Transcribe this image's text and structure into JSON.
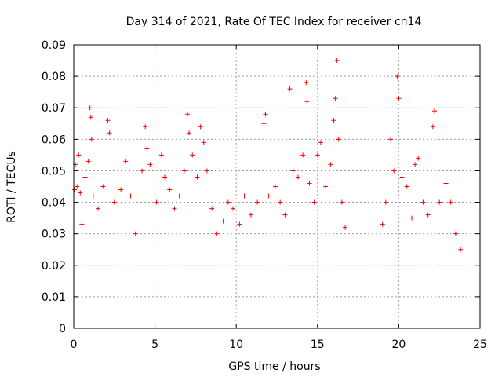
{
  "chart_data": {
    "type": "scatter",
    "title": "Day 314 of 2021, Rate Of TEC Index for receiver cn14",
    "xlabel": "GPS time / hours",
    "ylabel": "ROTI / TECUs",
    "xlim": [
      0,
      25
    ],
    "ylim": [
      0,
      0.09
    ],
    "xticks": [
      "0",
      "5",
      "10",
      "15",
      "20",
      "25"
    ],
    "yticks": [
      "0",
      "0.01",
      "0.02",
      "0.03",
      "0.04",
      "0.05",
      "0.06",
      "0.07",
      "0.08",
      "0.09"
    ],
    "grid": true,
    "marker": "+",
    "color": "#ff0000",
    "series": [
      {
        "points": [
          [
            0.05,
            0.044
          ],
          [
            0.1,
            0.052
          ],
          [
            0.2,
            0.045
          ],
          [
            0.3,
            0.055
          ],
          [
            0.4,
            0.043
          ],
          [
            0.5,
            0.033
          ],
          [
            0.7,
            0.048
          ],
          [
            0.9,
            0.053
          ],
          [
            1.0,
            0.07
          ],
          [
            1.05,
            0.067
          ],
          [
            1.1,
            0.06
          ],
          [
            1.2,
            0.042
          ],
          [
            1.5,
            0.038
          ],
          [
            1.8,
            0.045
          ],
          [
            2.1,
            0.066
          ],
          [
            2.2,
            0.062
          ],
          [
            2.5,
            0.04
          ],
          [
            2.9,
            0.044
          ],
          [
            3.2,
            0.053
          ],
          [
            3.5,
            0.042
          ],
          [
            3.8,
            0.03
          ],
          [
            4.2,
            0.05
          ],
          [
            4.4,
            0.064
          ],
          [
            4.5,
            0.057
          ],
          [
            4.7,
            0.052
          ],
          [
            5.1,
            0.04
          ],
          [
            5.4,
            0.055
          ],
          [
            5.6,
            0.048
          ],
          [
            5.9,
            0.044
          ],
          [
            6.2,
            0.038
          ],
          [
            6.5,
            0.042
          ],
          [
            6.8,
            0.05
          ],
          [
            7.0,
            0.068
          ],
          [
            7.1,
            0.062
          ],
          [
            7.3,
            0.055
          ],
          [
            7.6,
            0.048
          ],
          [
            7.8,
            0.064
          ],
          [
            8.0,
            0.059
          ],
          [
            8.2,
            0.05
          ],
          [
            8.5,
            0.038
          ],
          [
            8.8,
            0.03
          ],
          [
            9.2,
            0.034
          ],
          [
            9.5,
            0.04
          ],
          [
            9.8,
            0.038
          ],
          [
            10.2,
            0.033
          ],
          [
            10.5,
            0.042
          ],
          [
            10.9,
            0.036
          ],
          [
            11.3,
            0.04
          ],
          [
            11.7,
            0.065
          ],
          [
            11.8,
            0.068
          ],
          [
            12.0,
            0.042
          ],
          [
            12.4,
            0.045
          ],
          [
            12.7,
            0.04
          ],
          [
            13.0,
            0.036
          ],
          [
            13.3,
            0.076
          ],
          [
            13.5,
            0.05
          ],
          [
            13.8,
            0.048
          ],
          [
            14.1,
            0.055
          ],
          [
            14.3,
            0.078
          ],
          [
            14.35,
            0.072
          ],
          [
            14.5,
            0.046
          ],
          [
            14.8,
            0.04
          ],
          [
            15.0,
            0.055
          ],
          [
            15.2,
            0.059
          ],
          [
            15.5,
            0.045
          ],
          [
            15.8,
            0.052
          ],
          [
            16.0,
            0.066
          ],
          [
            16.1,
            0.073
          ],
          [
            16.2,
            0.085
          ],
          [
            16.3,
            0.06
          ],
          [
            16.5,
            0.04
          ],
          [
            16.7,
            0.032
          ],
          [
            19.0,
            0.033
          ],
          [
            19.2,
            0.04
          ],
          [
            19.5,
            0.06
          ],
          [
            19.7,
            0.05
          ],
          [
            19.9,
            0.08
          ],
          [
            20.0,
            0.073
          ],
          [
            20.2,
            0.048
          ],
          [
            20.5,
            0.045
          ],
          [
            20.8,
            0.035
          ],
          [
            21.0,
            0.052
          ],
          [
            21.2,
            0.054
          ],
          [
            21.5,
            0.04
          ],
          [
            21.8,
            0.036
          ],
          [
            22.1,
            0.064
          ],
          [
            22.2,
            0.069
          ],
          [
            22.5,
            0.04
          ],
          [
            22.9,
            0.046
          ],
          [
            23.2,
            0.04
          ],
          [
            23.5,
            0.03
          ],
          [
            23.8,
            0.025
          ]
        ]
      }
    ]
  }
}
